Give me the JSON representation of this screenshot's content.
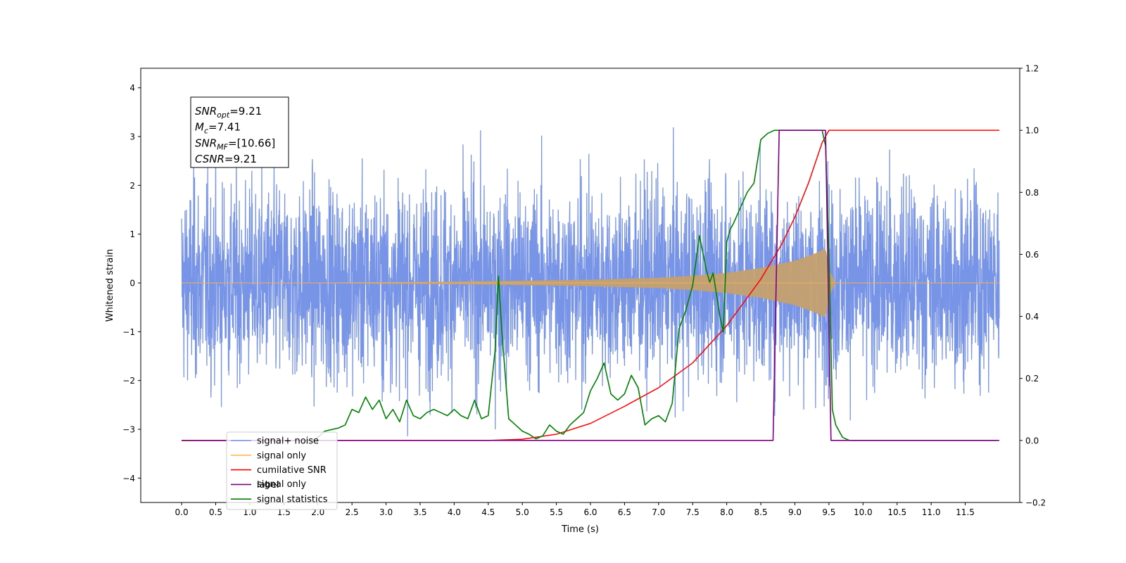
{
  "chart_data": {
    "type": "line",
    "xlabel": "Time (s)",
    "ylabel": "Whitened strain",
    "xlim": [
      -0.6,
      12.3
    ],
    "ylim": [
      -4.5,
      4.4
    ],
    "y2lim": [
      -0.2,
      1.2
    ],
    "x_ticks": [
      "0.0",
      "0.5",
      "1.0",
      "1.5",
      "2.0",
      "2.5",
      "3.0",
      "3.5",
      "4.0",
      "4.5",
      "5.0",
      "5.5",
      "6.0",
      "6.5",
      "7.0",
      "7.5",
      "8.0",
      "8.5",
      "9.0",
      "9.5",
      "10.0",
      "10.5",
      "11.0",
      "11.5"
    ],
    "y_ticks": [
      "4",
      "3",
      "2",
      "1",
      "0",
      "−1",
      "−2",
      "−3",
      "−4"
    ],
    "y2_ticks": [
      "1.2",
      "1.0",
      "0.8",
      "0.6",
      "0.4",
      "0.2",
      "0.0",
      "−0.2"
    ],
    "annotation_lines": [
      {
        "name": "SNR",
        "sub": "opt",
        "value": "=9.21"
      },
      {
        "name": "M",
        "sub": "c",
        "value": "=7.41"
      },
      {
        "name": "SNR",
        "sub": "MF",
        "value": "=[10.66]"
      },
      {
        "name": "CSNR",
        "sub": "",
        "value": "=9.21"
      }
    ],
    "legend_placement": "lower-left",
    "legend": [
      {
        "label": "signal+ noise",
        "color": "#7894e6"
      },
      {
        "label": "signal only",
        "color": "#ffb74d"
      },
      {
        "label": "cumilative SNR",
        "color": "#ff0000"
      },
      {
        "label": "label",
        "color": "#800080"
      },
      {
        "label": "signal statistics",
        "color": "#008000"
      }
    ],
    "background_text": "signal only",
    "series": [
      {
        "name": "signal+ noise",
        "axis": "left",
        "color": "#7894e6",
        "description": "whitened noise, approx. sigma 1.2, spanning 0.0–12.0 s"
      },
      {
        "name": "signal only",
        "axis": "left",
        "color": "#c4a06e",
        "description": "chirp waveform, amplitude growing from 0 near 2 s to about 0.7 at 9.45 s, then ringdown",
        "amplitude_envelope": {
          "x": [
            0.0,
            2.0,
            4.0,
            5.0,
            6.0,
            7.0,
            7.5,
            8.0,
            8.5,
            9.0,
            9.3,
            9.45,
            9.5,
            9.6,
            12.0
          ],
          "y": [
            0.0,
            0.0,
            0.02,
            0.04,
            0.06,
            0.1,
            0.14,
            0.2,
            0.3,
            0.45,
            0.6,
            0.7,
            0.25,
            0.0,
            0.0
          ]
        }
      },
      {
        "name": "cumilative SNR",
        "axis": "right",
        "color": "#ff0000",
        "x": [
          0.0,
          4.5,
          5.0,
          5.5,
          6.0,
          6.5,
          7.0,
          7.5,
          8.0,
          8.5,
          8.8,
          9.0,
          9.2,
          9.4,
          9.5,
          12.0
        ],
        "y": [
          0.0,
          0.0,
          0.004,
          0.02,
          0.055,
          0.11,
          0.17,
          0.25,
          0.37,
          0.52,
          0.63,
          0.72,
          0.83,
          0.96,
          1.0,
          1.0
        ]
      },
      {
        "name": "label",
        "axis": "right",
        "color": "#800080",
        "x": [
          0.0,
          8.68,
          8.77,
          9.45,
          9.53,
          12.0
        ],
        "y": [
          0.0,
          0.0,
          1.0,
          1.0,
          0.0,
          0.0
        ]
      },
      {
        "name": "signal statistics",
        "axis": "right",
        "color": "#008000",
        "x": [
          0.0,
          1.9,
          2.0,
          2.1,
          2.2,
          2.3,
          2.4,
          2.5,
          2.6,
          2.7,
          2.8,
          2.9,
          3.0,
          3.1,
          3.2,
          3.3,
          3.4,
          3.5,
          3.6,
          3.7,
          3.8,
          3.9,
          4.0,
          4.1,
          4.2,
          4.3,
          4.4,
          4.5,
          4.6,
          4.65,
          4.7,
          4.8,
          4.9,
          5.0,
          5.1,
          5.2,
          5.3,
          5.4,
          5.5,
          5.6,
          5.7,
          5.8,
          5.9,
          6.0,
          6.1,
          6.2,
          6.3,
          6.4,
          6.5,
          6.6,
          6.7,
          6.8,
          6.9,
          7.0,
          7.1,
          7.2,
          7.3,
          7.35,
          7.4,
          7.5,
          7.6,
          7.7,
          7.75,
          7.8,
          7.9,
          7.95,
          8.0,
          8.05,
          8.1,
          8.2,
          8.3,
          8.4,
          8.5,
          8.6,
          8.7,
          8.8,
          9.0,
          9.4,
          9.45,
          9.5,
          9.55,
          9.6,
          9.7,
          9.8,
          11.95
        ],
        "y": [
          0.0,
          0.0,
          0.01,
          0.03,
          0.035,
          0.04,
          0.05,
          0.1,
          0.09,
          0.14,
          0.1,
          0.13,
          0.07,
          0.1,
          0.06,
          0.13,
          0.08,
          0.07,
          0.09,
          0.1,
          0.09,
          0.08,
          0.1,
          0.08,
          0.07,
          0.13,
          0.07,
          0.08,
          0.29,
          0.53,
          0.35,
          0.07,
          0.05,
          0.03,
          0.02,
          0.005,
          0.015,
          0.05,
          0.03,
          0.02,
          0.05,
          0.07,
          0.09,
          0.16,
          0.2,
          0.25,
          0.15,
          0.13,
          0.15,
          0.21,
          0.17,
          0.05,
          0.07,
          0.08,
          0.06,
          0.12,
          0.36,
          0.39,
          0.42,
          0.5,
          0.66,
          0.55,
          0.51,
          0.54,
          0.4,
          0.35,
          0.64,
          0.68,
          0.7,
          0.75,
          0.8,
          0.83,
          0.97,
          0.99,
          1.0,
          1.0,
          1.0,
          1.0,
          0.95,
          0.6,
          0.1,
          0.05,
          0.01,
          0.0,
          0.0
        ]
      }
    ]
  }
}
